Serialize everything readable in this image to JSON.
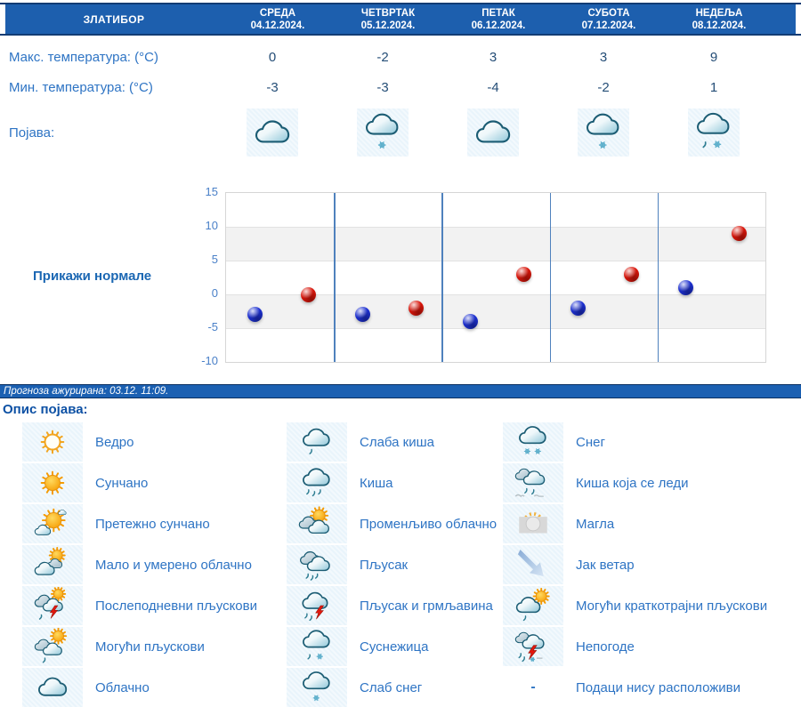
{
  "colors": {
    "header_bar": "#1d5fae",
    "header_border": "#123c74",
    "label_text": "#2e74c4",
    "value_text": "#254e77",
    "link": "#1b67b3",
    "status_bar": "#1b60b2",
    "legend_title": "#0c50a4",
    "icon_cell_bg": "#e9f4fb",
    "day_divider": "#4f81bd",
    "tick_label": "#4a80c8",
    "shaded_band": "#f2f2f2",
    "min_dot": "#1c2fd0",
    "max_dot": "#d9150a"
  },
  "header": {
    "station": "ЗЛАТИБОР",
    "days": [
      {
        "name": "СРЕДА",
        "date": "04.12.2024."
      },
      {
        "name": "ЧЕТВРТАК",
        "date": "05.12.2024."
      },
      {
        "name": "ПЕТАК",
        "date": "06.12.2024."
      },
      {
        "name": "СУБОТА",
        "date": "07.12.2024."
      },
      {
        "name": "НЕДЕЉА",
        "date": "08.12.2024."
      }
    ]
  },
  "rows": {
    "max_label": "Макс. температура: (°C)",
    "min_label": "Мин. температура: (°C)",
    "phenomena_label": "Појава:",
    "max_values": [
      "0",
      "-2",
      "3",
      "3",
      "9"
    ],
    "min_values": [
      "-3",
      "-3",
      "-4",
      "-2",
      "1"
    ],
    "phenomena_icons": [
      "cloud",
      "cloud-light-snow",
      "cloud",
      "cloud-light-snow",
      "cloud-rain-snow"
    ]
  },
  "chart": {
    "normals_button": "Прикажи нормале"
  },
  "chart_data": {
    "type": "scatter",
    "categories": [
      "04.12.2024.",
      "05.12.2024.",
      "06.12.2024.",
      "07.12.2024.",
      "08.12.2024."
    ],
    "series": [
      {
        "name": "Мин. температура (°C)",
        "color": "#1c2fd0",
        "values": [
          -3,
          -3,
          -4,
          -2,
          1
        ]
      },
      {
        "name": "Макс. температура (°C)",
        "color": "#d9150a",
        "values": [
          0,
          -2,
          3,
          3,
          9
        ]
      }
    ],
    "ylim": [
      -10,
      15
    ],
    "yticks": [
      15,
      10,
      5,
      0,
      -5,
      -10
    ],
    "grid": true,
    "legend_position": "none",
    "shaded_bands": [
      [
        5,
        10
      ],
      [
        -5,
        0
      ]
    ],
    "title": "",
    "xlabel": "",
    "ylabel": ""
  },
  "status_bar": {
    "text": "Прогноза ажурирана:  03.12. 11:09."
  },
  "legend": {
    "title": "Опис појава:",
    "dash": "-",
    "items": [
      {
        "icon": "sun-outline",
        "label": "Ведро"
      },
      {
        "icon": "cloud-light-rain",
        "label": "Слаба киша"
      },
      {
        "icon": "cloud-snow",
        "label": "Снег"
      },
      {
        "icon": "sun",
        "label": "Сунчано"
      },
      {
        "icon": "cloud-rain",
        "label": "Киша"
      },
      {
        "icon": "freezing-rain",
        "label": "Киша која се леди"
      },
      {
        "icon": "sun-cloud",
        "label": "Претежно сунчано"
      },
      {
        "icon": "clouds-sun",
        "label": "Променљиво облачно"
      },
      {
        "icon": "fog",
        "label": "Магла"
      },
      {
        "icon": "cloud-sun-small",
        "label": "Мало и умерено облачно"
      },
      {
        "icon": "clouds-rain",
        "label": "Пљусак"
      },
      {
        "icon": "wind-arrow",
        "label": "Јак ветар"
      },
      {
        "icon": "clouds-sun-storm",
        "label": "Послеподневни пљускови"
      },
      {
        "icon": "cloud-storm-rain",
        "label": "Пљусак и грмљавина"
      },
      {
        "icon": "cloud-sun-drop",
        "label": "Могући краткотрајни пљускови"
      },
      {
        "icon": "clouds-sun-drop",
        "label": "Могући пљускови"
      },
      {
        "icon": "cloud-rain-snow",
        "label": "Суснежица"
      },
      {
        "icon": "storm-severe",
        "label": "Непогоде"
      },
      {
        "icon": "cloud",
        "label": "Облачно"
      },
      {
        "icon": "cloud-light-snow",
        "label": "Слаб снег"
      },
      {
        "icon": "dash",
        "label": "Подаци нису расположиви"
      }
    ]
  }
}
